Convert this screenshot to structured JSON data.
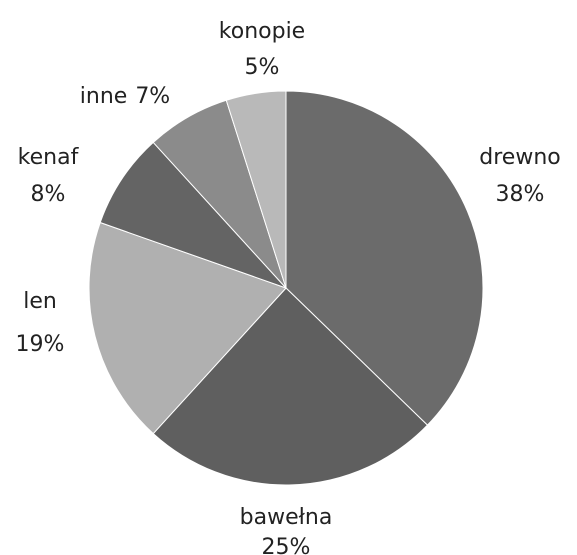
{
  "chart_data": {
    "type": "pie",
    "categories": [
      "drewno",
      "bawełna",
      "len",
      "kenaf",
      "inne",
      "konopie"
    ],
    "values": [
      38,
      25,
      19,
      8,
      7,
      5
    ],
    "value_labels": [
      "38%",
      "25%",
      "19%",
      "8%",
      "7%",
      "5%"
    ],
    "colors": [
      "#6b6b6b",
      "#5f5f5f",
      "#b0b0b0",
      "#646464",
      "#8b8b8b",
      "#b9b9b9"
    ]
  }
}
